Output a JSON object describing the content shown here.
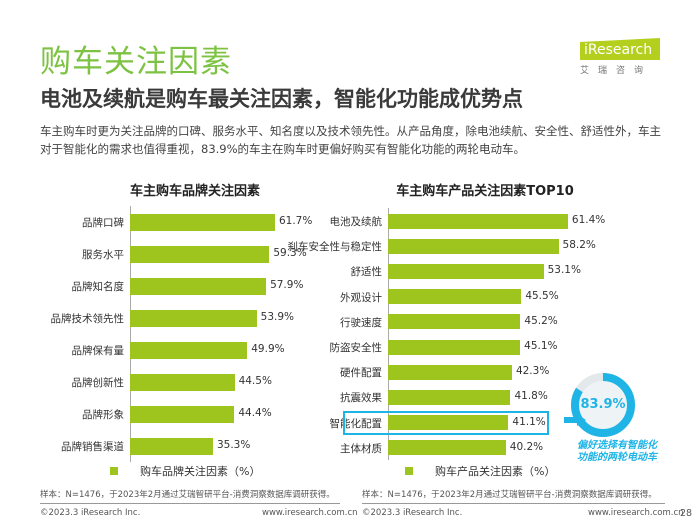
{
  "header": {
    "title": "购车关注因素",
    "subtitle": "电池及续航是购车最关注因素，智能化功能成优势点",
    "description": "车主购车时更为关注品牌的口碑、服务水平、知名度以及技术领先性。从产品角度，除电池续航、安全性、舒适性外，车主对于智能化的需求也值得重视，83.9%的车主在购车时更偏好购买有智能化功能的两轮电动车。"
  },
  "logo": {
    "name": "iResearch",
    "sub": "艾瑞咨询"
  },
  "colors": {
    "bar": "#9dc51e",
    "accent": "#1fb4e6",
    "title": "#7dc242"
  },
  "chart_data": [
    {
      "type": "bar",
      "orientation": "horizontal",
      "title": "车主购车品牌关注因素",
      "legend": "购车品牌关注因素（%）",
      "categories": [
        "品牌口碑",
        "服务水平",
        "品牌知名度",
        "品牌技术领先性",
        "品牌保有量",
        "品牌创新性",
        "品牌形象",
        "品牌销售渠道"
      ],
      "values": [
        61.7,
        59.3,
        57.9,
        53.9,
        49.9,
        44.5,
        44.4,
        35.3
      ],
      "labels": [
        "61.7%",
        "59.3%",
        "57.9%",
        "53.9%",
        "49.9%",
        "44.5%",
        "44.4%",
        "35.3%"
      ],
      "xlim": [
        0,
        70
      ]
    },
    {
      "type": "bar",
      "orientation": "horizontal",
      "title": "车主购车产品关注因素TOP10",
      "legend": "购车产品关注因素（%）",
      "categories": [
        "电池及续航",
        "刹车安全性与稳定性",
        "舒适性",
        "外观设计",
        "行驶速度",
        "防盗安全性",
        "硬件配置",
        "抗震效果",
        "智能化配置",
        "主体材质"
      ],
      "values": [
        61.4,
        58.2,
        53.1,
        45.5,
        45.2,
        45.1,
        42.3,
        41.8,
        41.1,
        40.2
      ],
      "labels": [
        "61.4%",
        "58.2%",
        "53.1%",
        "45.5%",
        "45.2%",
        "45.1%",
        "42.3%",
        "41.8%",
        "41.1%",
        "40.2%"
      ],
      "highlight": 8,
      "xlim": [
        0,
        70
      ]
    }
  ],
  "callout": {
    "value": 83.9,
    "label": "83.9%",
    "text1": "偏好选择有智能化",
    "text2": "功能的两轮电动车"
  },
  "source": "样本：N=1476，于2023年2月通过艾瑞智研平台-消费洞察数据库调研获得。",
  "footer": {
    "copyright": "©2023.3 iResearch Inc.",
    "url": "www.iresearch.com.cn",
    "page": "28"
  }
}
